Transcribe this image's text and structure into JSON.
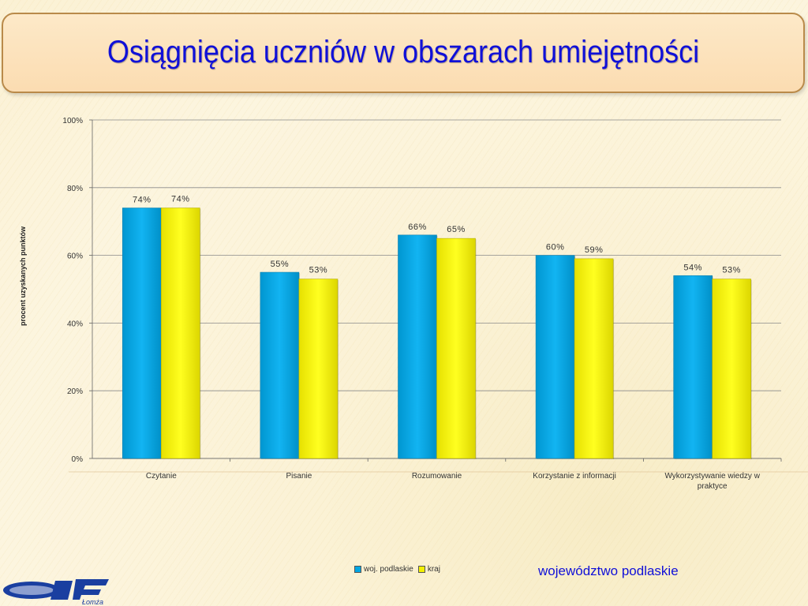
{
  "title": "Osiągnięcia uczniów w obszarach umiejętności",
  "region_label": "województwo podlaskie",
  "logo_text": "Łomża",
  "colors": {
    "series_1": "#00a6e2",
    "series_2": "#f3f000",
    "title": "#1010d8"
  },
  "chart_data": {
    "type": "bar",
    "title": "",
    "xlabel": "",
    "ylabel": "procent uzyskanych punktów",
    "ylim": [
      0,
      100
    ],
    "yticks": [
      "0%",
      "20%",
      "40%",
      "60%",
      "80%",
      "100%"
    ],
    "grid": true,
    "legend_position": "bottom",
    "categories": [
      "Czytanie",
      "Pisanie",
      "Rozumowanie",
      "Korzystanie z informacji",
      "Wykorzystywanie wiedzy w praktyce"
    ],
    "series": [
      {
        "name": "woj. podlaskie",
        "values": [
          74,
          55,
          66,
          60,
          54
        ],
        "labels": [
          "74%",
          "55%",
          "66%",
          "60%",
          "54%"
        ]
      },
      {
        "name": "kraj",
        "values": [
          74,
          53,
          65,
          59,
          53
        ],
        "labels": [
          "74%",
          "53%",
          "65%",
          "59%",
          "53%"
        ]
      }
    ]
  }
}
